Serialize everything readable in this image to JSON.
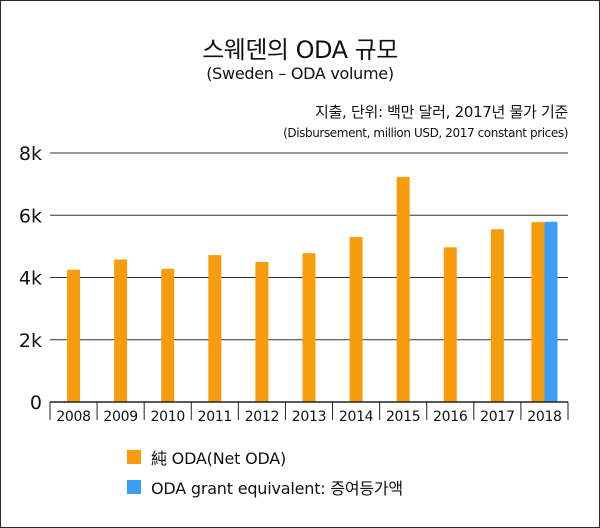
{
  "chart_data": {
    "type": "bar",
    "title": "스웨덴의 ODA 규모",
    "subtitle": "(Sweden – ODA volume)",
    "unit_ko": "지출, 단위: 백만 달러, 2017년 물가 기준",
    "unit_en": "(Disbursement, million USD, 2017 constant prices)",
    "xlabel": "",
    "ylabel": "",
    "ylim": [
      0,
      8000
    ],
    "yticks": [
      0,
      2000,
      4000,
      6000,
      8000
    ],
    "ytick_labels": [
      "0",
      "2k",
      "4k",
      "6k",
      "8k"
    ],
    "grid": true,
    "categories": [
      "2008",
      "2009",
      "2010",
      "2011",
      "2012",
      "2013",
      "2014",
      "2015",
      "2016",
      "2017",
      "2018"
    ],
    "series": [
      {
        "name": "純 ODA(Net ODA)",
        "color": "#f89c0e",
        "values": [
          4250,
          4580,
          4280,
          4720,
          4500,
          4780,
          5300,
          7230,
          4970,
          5550,
          5780
        ]
      },
      {
        "name": "ODA grant equivalent: 증여등가액",
        "color": "#3d9df0",
        "values": [
          null,
          null,
          null,
          null,
          null,
          null,
          null,
          null,
          null,
          null,
          5790
        ]
      }
    ],
    "legend_position": "bottom-left"
  }
}
